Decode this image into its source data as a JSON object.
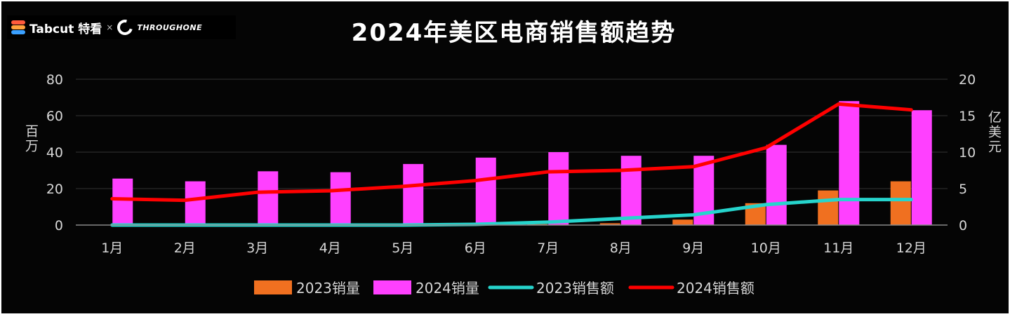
{
  "brand": {
    "name": "Tabcut 特看",
    "separator": "×",
    "partner": "THROUGHONE"
  },
  "chart_data": {
    "type": "bar+line",
    "title": "2024年美区电商销售额趋势",
    "categories": [
      "1月",
      "2月",
      "3月",
      "4月",
      "5月",
      "6月",
      "7月",
      "8月",
      "9月",
      "10月",
      "11月",
      "12月"
    ],
    "y_left": {
      "label": "百万",
      "ylim": [
        0,
        80
      ],
      "ticks": [
        0,
        20,
        40,
        60,
        80
      ]
    },
    "y_right": {
      "label": "亿美元",
      "ylim": [
        0,
        20
      ],
      "ticks": [
        0,
        5,
        10,
        15,
        20
      ]
    },
    "grid": true,
    "legend_position": "bottom",
    "series": [
      {
        "name": "2023销量",
        "type": "bar",
        "axis": "left",
        "color": "#f07020",
        "values": [
          0,
          0,
          0,
          0,
          0,
          0,
          0.5,
          1,
          3,
          12,
          19,
          24
        ]
      },
      {
        "name": "2024销量",
        "type": "bar",
        "axis": "left",
        "color": "#ff40ff",
        "values": [
          25.5,
          24,
          29.5,
          29,
          33.5,
          37,
          40,
          38,
          38,
          44,
          68,
          63
        ]
      },
      {
        "name": "2023销售额",
        "type": "line",
        "axis": "right",
        "color": "#26d4cc",
        "values": [
          0,
          0,
          0,
          0,
          0,
          0.1,
          0.4,
          0.9,
          1.4,
          2.8,
          3.5,
          3.5
        ]
      },
      {
        "name": "2024销售额",
        "type": "line",
        "axis": "right",
        "color": "#ff0000",
        "values": [
          3.6,
          3.4,
          4.5,
          4.7,
          5.3,
          6.1,
          7.3,
          7.5,
          8.0,
          10.6,
          16.6,
          15.8
        ]
      }
    ]
  }
}
